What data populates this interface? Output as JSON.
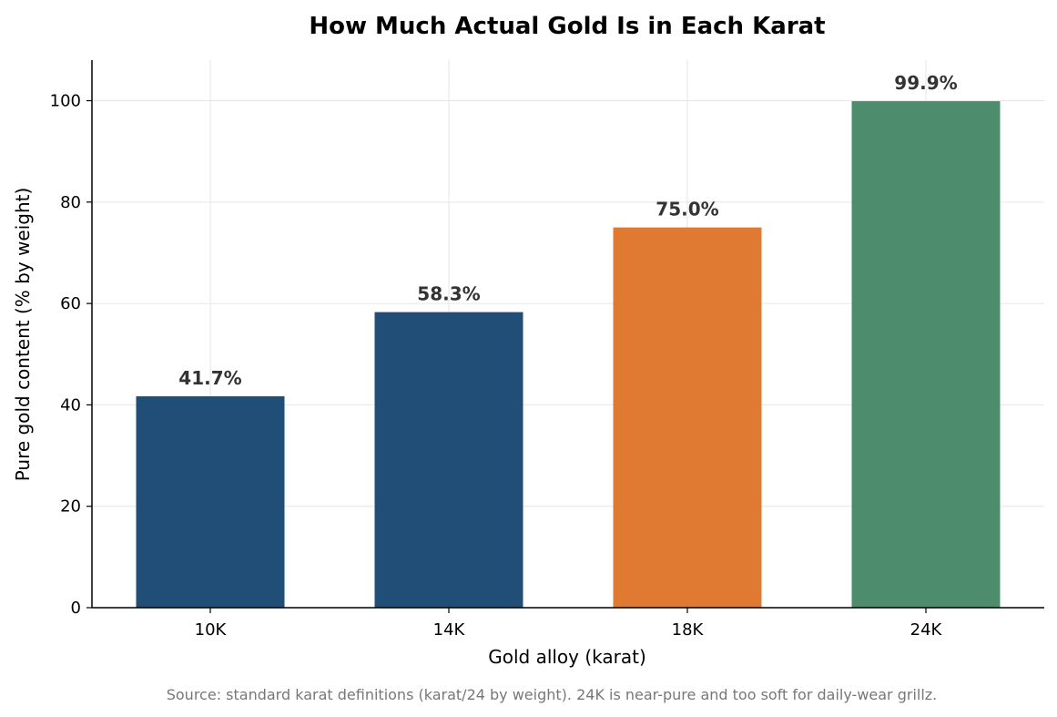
{
  "chart_data": {
    "type": "bar",
    "title": "How Much Actual Gold Is in Each Karat",
    "xlabel": "Gold alloy (karat)",
    "ylabel": "Pure gold content (% by weight)",
    "categories": [
      "10K",
      "14K",
      "18K",
      "24K"
    ],
    "values": [
      41.7,
      58.3,
      75.0,
      99.9
    ],
    "data_labels": [
      "41.7%",
      "58.3%",
      "75.0%",
      "99.9%"
    ],
    "bar_colors": [
      "#204e77",
      "#204e77",
      "#e07a33",
      "#4e8c6e"
    ],
    "ylim": [
      0,
      108
    ],
    "yticks": [
      0,
      20,
      40,
      60,
      80,
      100
    ],
    "grid": true,
    "legend": "none"
  },
  "footnote": "Source: standard karat definitions (karat/24 by weight). 24K is near-pure and too soft for daily-wear grillz."
}
